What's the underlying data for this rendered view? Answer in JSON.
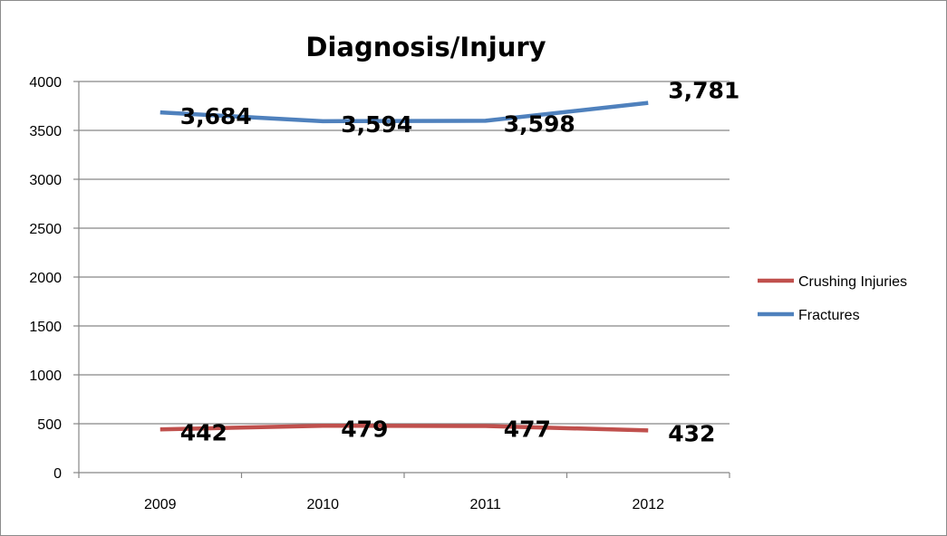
{
  "chart_data": {
    "type": "line",
    "title": "Diagnosis/Injury",
    "categories": [
      "2009",
      "2010",
      "2011",
      "2012"
    ],
    "ylim": [
      0,
      4000
    ],
    "yticks": [
      0,
      500,
      1000,
      1500,
      2000,
      2500,
      3000,
      3500,
      4000
    ],
    "grid": true,
    "legend_position": "right",
    "series": [
      {
        "name": "Crushing Injuries",
        "color": "#c0504d",
        "values": [
          442,
          479,
          477,
          432
        ],
        "labels": [
          "442",
          "479",
          "477",
          "432"
        ]
      },
      {
        "name": "Fractures",
        "color": "#4f81bd",
        "values": [
          3684,
          3594,
          3598,
          3781
        ],
        "labels": [
          "3,684",
          "3,594",
          "3,598",
          "3,781"
        ]
      }
    ]
  }
}
